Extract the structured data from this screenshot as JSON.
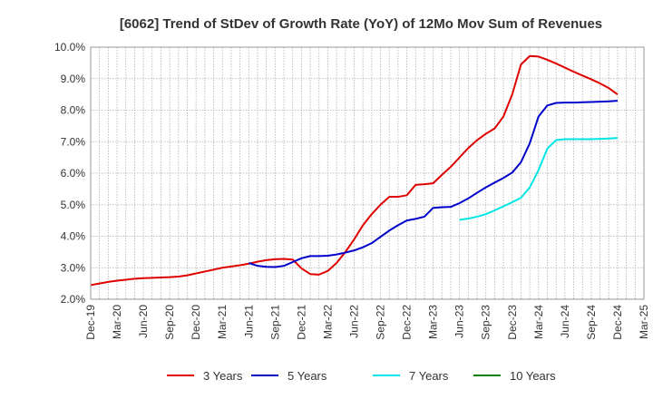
{
  "chart_data": {
    "type": "line",
    "title": "[6062]  Trend of StDev of Growth Rate (YoY) of 12Mo Mov Sum of Revenues",
    "xlabel": "",
    "ylabel": "",
    "ylim": [
      2.0,
      10.0
    ],
    "yticks": [
      "2.0%",
      "3.0%",
      "4.0%",
      "5.0%",
      "6.0%",
      "7.0%",
      "8.0%",
      "9.0%",
      "10.0%"
    ],
    "xtick_labels": [
      "Dec-19",
      "Mar-20",
      "Jun-20",
      "Sep-20",
      "Dec-20",
      "Mar-21",
      "Jun-21",
      "Sep-21",
      "Dec-21",
      "Mar-22",
      "Jun-22",
      "Sep-22",
      "Dec-22",
      "Mar-23",
      "Jun-23",
      "Sep-23",
      "Dec-23",
      "Mar-24",
      "Jun-24",
      "Sep-24",
      "Dec-24",
      "Mar-25"
    ],
    "x_range_months": [
      0,
      63
    ],
    "grid": true,
    "legend_position": "bottom",
    "series": [
      {
        "name": "3 Years",
        "color": "#e00000",
        "x": [
          0,
          1,
          2,
          3,
          4,
          5,
          6,
          7,
          8,
          9,
          10,
          11,
          12,
          13,
          14,
          15,
          16,
          17,
          18,
          19,
          20,
          21,
          22,
          23,
          24,
          25,
          26,
          27,
          28,
          29,
          30,
          31,
          32,
          33,
          34,
          35,
          36,
          37,
          38,
          39,
          40,
          41,
          42,
          43,
          44,
          45,
          46,
          47,
          48,
          49,
          50,
          51,
          52,
          53,
          54,
          55,
          56,
          57,
          58,
          59,
          60
        ],
        "values": [
          2.45,
          2.5,
          2.55,
          2.59,
          2.62,
          2.65,
          2.67,
          2.68,
          2.69,
          2.7,
          2.72,
          2.76,
          2.82,
          2.88,
          2.94,
          3.0,
          3.04,
          3.08,
          3.13,
          3.19,
          3.24,
          3.27,
          3.28,
          3.26,
          2.98,
          2.8,
          2.78,
          2.9,
          3.15,
          3.5,
          3.9,
          4.35,
          4.7,
          5.0,
          5.25,
          5.25,
          5.3,
          5.63,
          5.65,
          5.68,
          5.95,
          6.2,
          6.5,
          6.8,
          7.05,
          7.25,
          7.42,
          7.8,
          8.5,
          9.45,
          9.72,
          9.7,
          9.6,
          9.48,
          9.35,
          9.22,
          9.1,
          8.98,
          8.85,
          8.7,
          8.5
        ]
      },
      {
        "name": "5 Years",
        "color": "#0000cc",
        "x": [
          18,
          19,
          20,
          21,
          22,
          23,
          24,
          25,
          26,
          27,
          28,
          29,
          30,
          31,
          32,
          33,
          34,
          35,
          36,
          37,
          38,
          39,
          40,
          41,
          42,
          43,
          44,
          45,
          46,
          47,
          48,
          49,
          50,
          51,
          52,
          53,
          54,
          55,
          56,
          57,
          58,
          59,
          60
        ],
        "values": [
          3.15,
          3.06,
          3.03,
          3.02,
          3.06,
          3.18,
          3.3,
          3.37,
          3.37,
          3.38,
          3.42,
          3.48,
          3.55,
          3.65,
          3.78,
          3.98,
          4.18,
          4.35,
          4.5,
          4.55,
          4.62,
          4.9,
          4.92,
          4.93,
          5.05,
          5.2,
          5.38,
          5.55,
          5.7,
          5.85,
          6.02,
          6.35,
          6.95,
          7.8,
          8.15,
          8.23,
          8.24,
          8.24,
          8.25,
          8.26,
          8.27,
          8.28,
          8.3
        ]
      },
      {
        "name": "7 Years",
        "color": "#00e5e5",
        "x": [
          42,
          43,
          44,
          45,
          46,
          47,
          48,
          49,
          50,
          51,
          52,
          53,
          54,
          55,
          56,
          57,
          58,
          59,
          60
        ],
        "values": [
          4.52,
          4.56,
          4.62,
          4.7,
          4.82,
          4.95,
          5.08,
          5.22,
          5.55,
          6.1,
          6.78,
          7.05,
          7.08,
          7.08,
          7.08,
          7.08,
          7.09,
          7.1,
          7.12
        ]
      },
      {
        "name": "10 Years",
        "color": "#008000",
        "x": [],
        "values": []
      }
    ]
  }
}
